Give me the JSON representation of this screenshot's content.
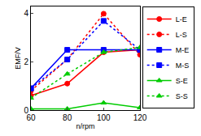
{
  "chart_data": {
    "type": "line",
    "x_label": "n/rpm",
    "y_label": "EMF/V",
    "x": [
      60,
      80,
      100,
      120
    ],
    "xlim": [
      60,
      120
    ],
    "xticks": [
      60,
      80,
      100,
      120
    ],
    "ylim": [
      0,
      4.3
    ],
    "yticks": [
      0,
      2,
      4
    ],
    "grid": false,
    "legend": "right",
    "series": [
      {
        "name": "L-E",
        "color": "#ff0000",
        "marker": "circle",
        "line_style": "solid",
        "values": [
          0.6,
          1.1,
          2.4,
          2.5
        ]
      },
      {
        "name": "L-S",
        "color": "#ff0000",
        "marker": "circle",
        "line_style": "dot",
        "values": [
          0.8,
          2.1,
          4.0,
          2.3
        ]
      },
      {
        "name": "M-E",
        "color": "#0000ff",
        "marker": "square",
        "line_style": "solid",
        "values": [
          0.9,
          2.5,
          2.5,
          2.5
        ]
      },
      {
        "name": "M-S",
        "color": "#0000ff",
        "marker": "square",
        "line_style": "dot",
        "values": [
          0.9,
          2.1,
          3.7,
          2.5
        ]
      },
      {
        "name": "S-E",
        "color": "#00cc00",
        "marker": "triangle-up",
        "line_style": "solid",
        "values": [
          0.05,
          0.05,
          0.3,
          0.1
        ]
      },
      {
        "name": "S-S",
        "color": "#00cc00",
        "marker": "triangle-up",
        "line_style": "dot",
        "values": [
          0.5,
          1.5,
          2.4,
          2.6
        ]
      }
    ]
  }
}
